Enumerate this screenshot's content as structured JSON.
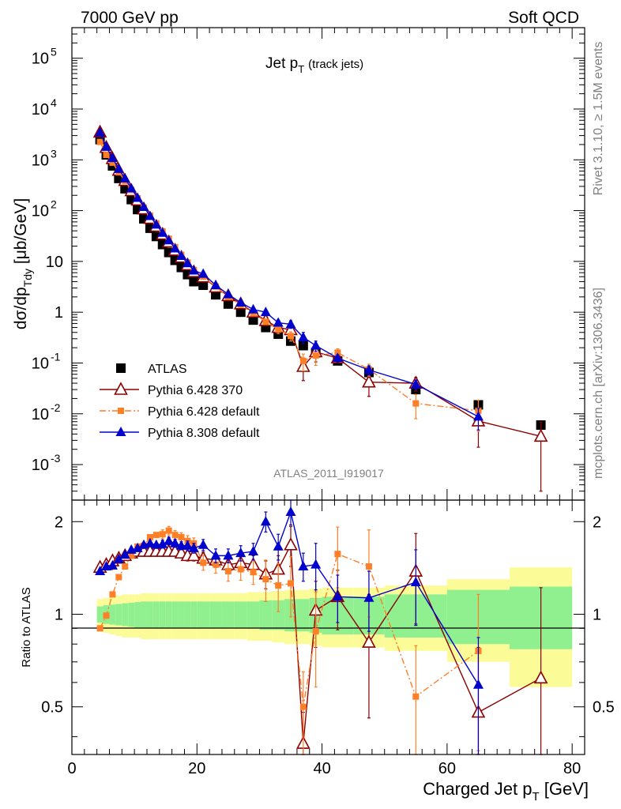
{
  "header": {
    "left": "7000 GeV pp",
    "right": "Soft QCD"
  },
  "side_labels": {
    "rivet": "Rivet 3.1.10, ≥ 1.5M events",
    "mcplots": "mcplots.cern.ch [arXiv:1306.3436]"
  },
  "analysis_id": "ATLAS_2011_I919017",
  "chart_data": [
    {
      "type": "scatter",
      "title": "Jet p_T (track jets)",
      "title_main": "Jet p",
      "title_sub": "T",
      "title_extra": "(track jets)",
      "ylabel": "dσ/dp_Tdy [μb/GeV]",
      "xlabel": "Charged Jet p_T [GeV]",
      "xlim": [
        0,
        82
      ],
      "ylim": [
        0.0002,
        400000
      ],
      "yscale": "log",
      "x_ticks": [
        0,
        20,
        40,
        60,
        80
      ],
      "y_ticks": [
        "10^-3",
        "10^-2",
        "10^-1",
        "1",
        "10",
        "10^2",
        "10^3",
        "10^4",
        "10^5"
      ],
      "legend_position": "lower-left",
      "x": [
        4.5,
        5.5,
        6.5,
        7.5,
        8.5,
        9.5,
        10.5,
        11.5,
        12.5,
        13.5,
        14.5,
        15.5,
        16.5,
        17.5,
        18.5,
        19.5,
        21,
        23,
        25,
        27,
        29,
        31,
        33,
        35,
        37,
        39,
        42.5,
        47.5,
        55,
        65,
        75
      ],
      "series": [
        {
          "name": "ATLAS",
          "marker": "square",
          "color": "#000000",
          "values": [
            2500,
            1250,
            760,
            430,
            270,
            165,
            105,
            69,
            45,
            31,
            21.5,
            15,
            10.5,
            7.6,
            5.5,
            4.0,
            3.4,
            2.2,
            1.45,
            1.0,
            0.7,
            0.5,
            0.37,
            0.27,
            0.22,
            0.16,
            0.11,
            0.065,
            0.03,
            0.015,
            0.006
          ],
          "errors": [
            0,
            0,
            0,
            0,
            0,
            0,
            0,
            0,
            0,
            0,
            0,
            0,
            0,
            0,
            0,
            0,
            0,
            0,
            0,
            0,
            0,
            0,
            0,
            0,
            0,
            0,
            0,
            0,
            0,
            0,
            0
          ]
        },
        {
          "name": "Pythia 6.428 370",
          "marker": "triangle-open",
          "color": "#8b0000",
          "line": "solid",
          "values": [
            3500,
            1750,
            1050,
            620,
            390,
            245,
            160,
            107,
            70,
            49,
            34,
            24,
            16.5,
            12,
            8.5,
            6.2,
            4.9,
            3.1,
            2.1,
            1.45,
            1.0,
            0.68,
            0.5,
            0.45,
            0.085,
            0.165,
            0.125,
            0.042,
            0.04,
            0.0072,
            0.0036
          ],
          "errors": [
            0,
            0,
            0,
            0,
            0,
            0,
            0,
            0,
            0,
            0,
            0,
            0,
            0,
            0,
            0,
            0,
            0,
            0,
            0,
            0,
            0.05,
            0.08,
            0.08,
            0.1,
            0.04,
            0.06,
            0.02,
            0.02,
            0.012,
            0.005,
            0.0033
          ]
        },
        {
          "name": "Pythia 6.428 default",
          "marker": "square-small",
          "color": "#ff7f27",
          "line": "dashdot",
          "values": [
            2250,
            1250,
            880,
            570,
            385,
            255,
            175,
            115,
            80,
            56,
            39,
            28,
            19,
            13.5,
            9.5,
            6.8,
            5.0,
            3.2,
            2.0,
            1.4,
            0.96,
            0.65,
            0.46,
            0.34,
            0.11,
            0.14,
            0.16,
            0.075,
            0.016,
            0.0115,
            0.0
          ],
          "errors": [
            0,
            0,
            0,
            0,
            0,
            0,
            0,
            0,
            0,
            0,
            0,
            0,
            0,
            0,
            0,
            0,
            0,
            0,
            0,
            0.1,
            0.08,
            0.08,
            0.08,
            0.07,
            0.04,
            0.05,
            0.03,
            0.02,
            0.008,
            0.007,
            0
          ]
        },
        {
          "name": "Pythia 8.308 default",
          "marker": "triangle",
          "color": "#0000cd",
          "line": "solid",
          "values": [
            3450,
            1800,
            1080,
            660,
            430,
            275,
            178,
            118,
            78,
            53,
            36.5,
            26,
            18,
            12.8,
            9.2,
            6.6,
            5.7,
            3.4,
            2.25,
            1.55,
            1.13,
            1.0,
            0.62,
            0.58,
            0.32,
            0.22,
            0.125,
            0.073,
            0.038,
            0.0088,
            0.0
          ],
          "errors": [
            0,
            0,
            0,
            0,
            0,
            0,
            0,
            0,
            0,
            0,
            0,
            0,
            0,
            0,
            0,
            0,
            0,
            0,
            0,
            0,
            0.05,
            0.08,
            0.08,
            0.1,
            0.08,
            0.05,
            0.02,
            0.015,
            0.008,
            0.004,
            0
          ]
        }
      ]
    },
    {
      "type": "scatter",
      "ylabel": "Ratio to ATLAS",
      "xlim": [
        0,
        82
      ],
      "ylim": [
        0.35,
        2.35
      ],
      "yscale": "log",
      "y_ticks": [
        "0.5",
        "1",
        "2"
      ],
      "reference_line": 1,
      "bands": {
        "x_edges": [
          4,
          5,
          6,
          7,
          8,
          9,
          10,
          11,
          12,
          13,
          14,
          15,
          16,
          17,
          18,
          19,
          20,
          22,
          24,
          26,
          28,
          30,
          32,
          34,
          36,
          38,
          40,
          45,
          50,
          60,
          70,
          80
        ],
        "inner": [
          0.06,
          0.07,
          0.075,
          0.08,
          0.085,
          0.09,
          0.095,
          0.1,
          0.1,
          0.1,
          0.1,
          0.1,
          0.1,
          0.1,
          0.1,
          0.1,
          0.1,
          0.1,
          0.1,
          0.1,
          0.1,
          0.11,
          0.11,
          0.12,
          0.12,
          0.13,
          0.14,
          0.14,
          0.16,
          0.2,
          0.23
        ],
        "outer": [
          0.12,
          0.13,
          0.14,
          0.15,
          0.16,
          0.16,
          0.16,
          0.17,
          0.17,
          0.17,
          0.17,
          0.17,
          0.17,
          0.17,
          0.17,
          0.17,
          0.17,
          0.17,
          0.17,
          0.17,
          0.18,
          0.18,
          0.19,
          0.2,
          0.2,
          0.21,
          0.22,
          0.22,
          0.24,
          0.3,
          0.42
        ],
        "inner_color": "#90f090",
        "outer_color": "#fbfb98"
      },
      "x": [
        4.5,
        5.5,
        6.5,
        7.5,
        8.5,
        9.5,
        10.5,
        11.5,
        12.5,
        13.5,
        14.5,
        15.5,
        16.5,
        17.5,
        18.5,
        19.5,
        21,
        23,
        25,
        27,
        29,
        31,
        33,
        35,
        37,
        39,
        42.5,
        47.5,
        55,
        65,
        75
      ],
      "series": [
        {
          "name": "Pythia 6.428 370",
          "marker": "triangle-open",
          "color": "#8b0000",
          "line": "solid",
          "values": [
            1.42,
            1.45,
            1.49,
            1.52,
            1.55,
            1.58,
            1.6,
            1.6,
            1.6,
            1.6,
            1.6,
            1.6,
            1.6,
            1.58,
            1.55,
            1.55,
            1.52,
            1.5,
            1.45,
            1.47,
            1.45,
            1.35,
            1.4,
            1.68,
            0.38,
            1.03,
            1.14,
            0.81,
            1.38,
            0.48,
            0.62
          ],
          "errors": [
            0,
            0,
            0,
            0,
            0,
            0,
            0,
            0,
            0,
            0,
            0.05,
            0.05,
            0.05,
            0.05,
            0.06,
            0.06,
            0.07,
            0.08,
            0.08,
            0.09,
            0.1,
            0.14,
            0.15,
            0.25,
            0.1,
            0.25,
            0.25,
            0.35,
            0.45,
            0.3,
            0.6
          ]
        },
        {
          "name": "Pythia 6.428 default",
          "marker": "square-small",
          "color": "#ff7f27",
          "line": "dashdot",
          "values": [
            0.9,
            0.99,
            1.16,
            1.32,
            1.43,
            1.55,
            1.66,
            1.67,
            1.78,
            1.81,
            1.82,
            1.87,
            1.81,
            1.78,
            1.73,
            1.7,
            1.47,
            1.45,
            1.38,
            1.4,
            1.37,
            1.3,
            1.24,
            1.26,
            0.5,
            0.88,
            1.57,
            1.43,
            0.54,
            0.76,
            0.0
          ],
          "errors": [
            0,
            0,
            0,
            0,
            0,
            0,
            0,
            0,
            0,
            0,
            0.06,
            0.06,
            0.06,
            0.06,
            0.07,
            0.07,
            0.08,
            0.09,
            0.1,
            0.11,
            0.12,
            0.2,
            0.22,
            0.28,
            0.15,
            0.3,
            0.35,
            0.45,
            0.25,
            0.4,
            0
          ]
        },
        {
          "name": "Pythia 8.308 default",
          "marker": "triangle",
          "color": "#0000cd",
          "line": "solid",
          "values": [
            1.38,
            1.43,
            1.44,
            1.51,
            1.56,
            1.62,
            1.64,
            1.68,
            1.7,
            1.68,
            1.69,
            1.73,
            1.7,
            1.67,
            1.67,
            1.64,
            1.68,
            1.55,
            1.55,
            1.58,
            1.6,
            2.0,
            1.66,
            2.15,
            1.43,
            1.45,
            1.14,
            1.13,
            1.27,
            0.59,
            0.0
          ],
          "errors": [
            0,
            0,
            0,
            0,
            0,
            0,
            0,
            0,
            0,
            0,
            0.05,
            0.05,
            0.05,
            0.05,
            0.06,
            0.06,
            0.07,
            0.08,
            0.08,
            0.09,
            0.1,
            0.15,
            0.16,
            0.2,
            0.15,
            0.25,
            0.2,
            0.25,
            0.35,
            0.25,
            0
          ]
        }
      ]
    }
  ]
}
